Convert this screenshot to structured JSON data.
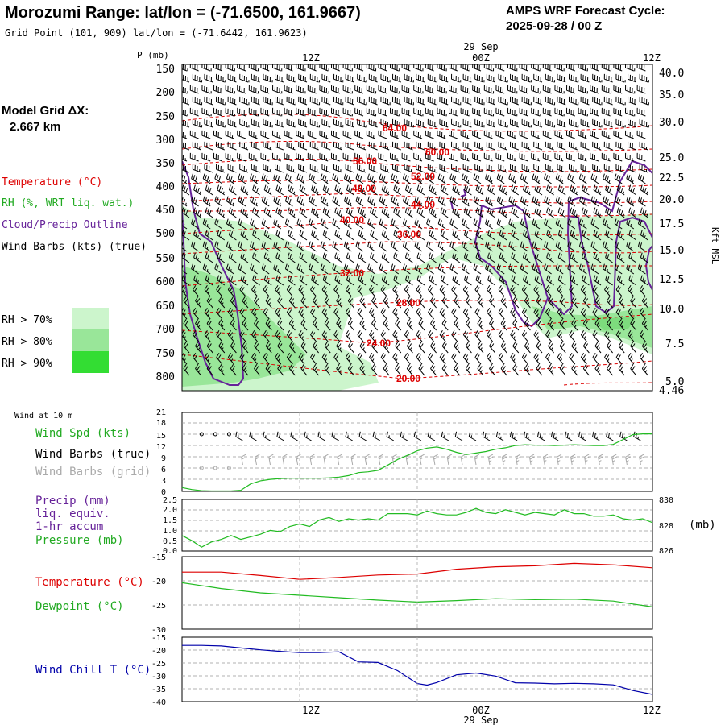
{
  "header": {
    "title": "Morozumi Range:  lat/lon = (-71.6500, 161.9667)",
    "grid_point": "Grid Point (101, 909) lat/lon = (-71.6442, 161.9623)",
    "cycle_label": "AMPS WRF Forecast Cycle:",
    "cycle_value": "2025-09-28 / 00  Z"
  },
  "model_grid": {
    "label": "Model Grid ΔX:",
    "value": "2.667 km"
  },
  "time_axis": {
    "labels": [
      "12Z",
      "00Z",
      "12Z"
    ],
    "date_label": "29 Sep"
  },
  "legend": {
    "temperature": {
      "text": "Temperature (°C)",
      "color": "#dd0000"
    },
    "rh": {
      "text": "RH (%, WRT liq. wat.)",
      "color": "#22aa22"
    },
    "cloud": {
      "text": "Cloud/Precip Outline",
      "color": "#662299"
    },
    "wind": {
      "text": "Wind Barbs (kts) (true)",
      "color": "#000000"
    },
    "rh_scale": [
      {
        "label": "RH > 70%",
        "color": "#ccf5cc"
      },
      {
        "label": "RH > 80%",
        "color": "#99e699"
      },
      {
        "label": "RH > 90%",
        "color": "#33dd33"
      }
    ]
  },
  "colors": {
    "temperature": "#dd0000",
    "rh": "#22bb22",
    "cloud": "#662299",
    "wind_chill": "#0000aa",
    "grid_barbs": "#aaaaaa",
    "precip_label": "#662299"
  },
  "chart_data": [
    {
      "type": "heatmap",
      "name": "upper-air cross section",
      "ylabel": "P (mb)",
      "y_ticks_left": [
        "150",
        "200",
        "250",
        "300",
        "350",
        "400",
        "450",
        "500",
        "550",
        "600",
        "650",
        "700",
        "750",
        "800"
      ],
      "y_ticks_right_label": "Kft MSL",
      "y_ticks_right": [
        "40.0",
        "35.0",
        "30.0",
        "25.0",
        "22.5",
        "20.0",
        "17.5",
        "15.0",
        "12.5",
        "10.0",
        "7.5",
        "5.0",
        "4.46"
      ],
      "temperature_contours": [
        "64.00",
        "60.00",
        "56.00",
        "52.00",
        "48.00",
        "44.00",
        "40.00",
        "36.00",
        "32.00",
        "28.00",
        "24.00",
        "20.00"
      ]
    },
    {
      "type": "line",
      "name": "wind at 10 m",
      "panel_title": "Wind at 10 m",
      "labels": [
        "Wind Spd (kts)",
        "Wind Barbs (true)",
        "Wind Barbs (grid)"
      ],
      "y_ticks": [
        "21",
        "18",
        "15",
        "12",
        "9",
        "6",
        "3",
        "0"
      ],
      "ylim": [
        0,
        21
      ],
      "x": [
        0,
        1,
        2,
        3,
        4,
        5,
        6,
        7,
        8,
        9,
        10,
        11,
        12,
        13,
        14,
        15,
        16,
        17,
        18,
        19,
        20,
        21,
        22,
        23,
        24,
        25,
        26,
        27,
        28,
        29,
        30,
        31,
        32,
        33,
        34,
        35,
        36,
        37,
        38,
        39,
        40,
        41,
        42,
        43,
        44,
        45,
        46,
        47,
        48
      ],
      "series": [
        {
          "name": "Wind Spd (kts)",
          "values": [
            1,
            0.5,
            0.2,
            0.1,
            0.1,
            0.1,
            0.3,
            2,
            2.8,
            3.2,
            3.4,
            3.5,
            3.5,
            3.5,
            3.5,
            3.6,
            3.8,
            4.2,
            5,
            5.2,
            5.6,
            7,
            8.5,
            9.6,
            10.8,
            11.5,
            11.8,
            11.2,
            10.4,
            9.8,
            10.2,
            10.6,
            11.2,
            11.6,
            12.2,
            12.4,
            12.3,
            12.3,
            12.2,
            12.3,
            12.4,
            12.3,
            12.2,
            12.2,
            12.5,
            13.8,
            15.1,
            15.3,
            15.3
          ]
        }
      ]
    },
    {
      "type": "line",
      "name": "precip and pressure",
      "labels": [
        "Precip (mm)",
        "liq. equiv.",
        "1-hr accum",
        "Pressure (mb)"
      ],
      "y_ticks_left": [
        "2.5",
        "2.0",
        "1.5",
        "1.0",
        "0.5",
        "0.0"
      ],
      "y_ticks_right": [
        "830",
        "828",
        "826"
      ],
      "y_right_unit": "(mb)",
      "ylim": [
        826,
        830
      ],
      "x": [
        0,
        1,
        2,
        3,
        4,
        5,
        6,
        7,
        8,
        9,
        10,
        11,
        12,
        13,
        14,
        15,
        16,
        17,
        18,
        19,
        20,
        21,
        22,
        23,
        24,
        25,
        26,
        27,
        28,
        29,
        30,
        31,
        32,
        33,
        34,
        35,
        36,
        37,
        38,
        39,
        40,
        41,
        42,
        43,
        44,
        45,
        46,
        47,
        48
      ],
      "series": [
        {
          "name": "Pressure (mb)",
          "values": [
            827.2,
            826.8,
            826.3,
            826.7,
            826.9,
            827.2,
            826.9,
            827.1,
            827.3,
            827.6,
            827.5,
            827.9,
            828.1,
            827.9,
            828.4,
            828.6,
            828.3,
            828.5,
            828.4,
            828.5,
            828.4,
            828.9,
            828.9,
            828.9,
            828.8,
            829.1,
            828.9,
            828.8,
            828.8,
            829.0,
            829.3,
            829.0,
            828.9,
            829.2,
            829.0,
            828.8,
            829.0,
            828.9,
            828.8,
            829.2,
            828.9,
            828.9,
            828.7,
            828.7,
            828.8,
            828.5,
            828.4,
            828.5,
            828.2
          ]
        }
      ]
    },
    {
      "type": "line",
      "name": "temperature and dewpoint",
      "labels": [
        "Temperature (°C)",
        "Dewpoint (°C)"
      ],
      "y_ticks": [
        "-15",
        "-20",
        "-25",
        "-30"
      ],
      "ylim": [
        -30,
        -15
      ],
      "x": [
        0,
        4,
        8,
        12,
        16,
        20,
        24,
        28,
        32,
        36,
        40,
        44,
        48
      ],
      "series": [
        {
          "name": "Temperature (°C)",
          "values": [
            -18.2,
            -18.2,
            -18.9,
            -19.7,
            -19.3,
            -18.8,
            -18.6,
            -17.6,
            -17.1,
            -16.9,
            -16.4,
            -16.7,
            -17.3
          ]
        },
        {
          "name": "Dewpoint (°C)",
          "values": [
            -20.4,
            -21.6,
            -22.5,
            -23.0,
            -23.5,
            -24.0,
            -24.4,
            -24.1,
            -23.7,
            -23.9,
            -23.8,
            -24.2,
            -25.4
          ]
        }
      ]
    },
    {
      "type": "line",
      "name": "wind chill",
      "labels": [
        "Wind Chill T (°C)"
      ],
      "y_ticks": [
        "-15",
        "-20",
        "-25",
        "-30",
        "-35",
        "-40"
      ],
      "ylim": [
        -40,
        -15
      ],
      "x": [
        0,
        2,
        4,
        6,
        8,
        10,
        12,
        14,
        16,
        18,
        20,
        22,
        24,
        25,
        26,
        28,
        30,
        32,
        34,
        36,
        38,
        40,
        42,
        44,
        46,
        48
      ],
      "series": [
        {
          "name": "Wind Chill T (°C)",
          "values": [
            -18.2,
            -18.2,
            -18.4,
            -19.2,
            -19.9,
            -20.5,
            -21.0,
            -21.0,
            -20.7,
            -24.6,
            -24.8,
            -28.0,
            -33.0,
            -33.6,
            -32.6,
            -29.6,
            -28.9,
            -30.1,
            -32.7,
            -32.8,
            -33.1,
            -32.9,
            -33.1,
            -33.5,
            -35.7,
            -37.2
          ]
        }
      ]
    }
  ]
}
